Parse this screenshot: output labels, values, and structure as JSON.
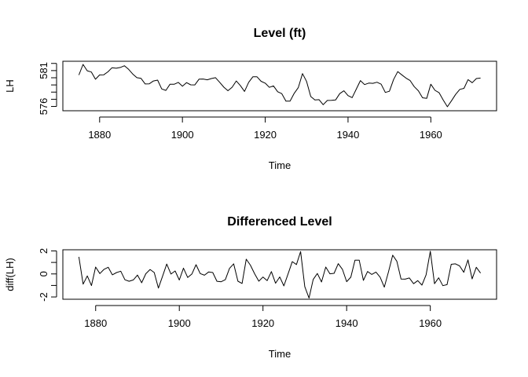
{
  "chart_data": [
    {
      "type": "line",
      "title": "Level (ft)",
      "xlabel": "Time",
      "ylabel": "LH",
      "xlim": [
        1875,
        1972
      ],
      "ylim": [
        575.4,
        582.3
      ],
      "x_ticks": [
        1880,
        1900,
        1920,
        1940,
        1960
      ],
      "x_tick_labels": [
        "1880",
        "1900",
        "1920",
        "1940",
        "1960"
      ],
      "y_ticks": [
        576,
        577,
        578,
        579,
        580,
        581,
        582
      ],
      "y_tick_labels": [
        "576",
        "",
        "",
        "",
        "",
        "581",
        ""
      ],
      "grid": false,
      "series": [
        {
          "x": [
            1875,
            1876,
            1877,
            1878,
            1879,
            1880,
            1881,
            1882,
            1883,
            1884,
            1885,
            1886,
            1887,
            1888,
            1889,
            1890,
            1891,
            1892,
            1893,
            1894,
            1895,
            1896,
            1897,
            1898,
            1899,
            1900,
            1901,
            1902,
            1903,
            1904,
            1905,
            1906,
            1907,
            1908,
            1909,
            1910,
            1911,
            1912,
            1913,
            1914,
            1915,
            1916,
            1917,
            1918,
            1919,
            1920,
            1921,
            1922,
            1923,
            1924,
            1925,
            1926,
            1927,
            1928,
            1929,
            1930,
            1931,
            1932,
            1933,
            1934,
            1935,
            1936,
            1937,
            1938,
            1939,
            1940,
            1941,
            1942,
            1943,
            1944,
            1945,
            1946,
            1947,
            1948,
            1949,
            1950,
            1951,
            1952,
            1953,
            1954,
            1955,
            1956,
            1957,
            1958,
            1959,
            1960,
            1961,
            1962,
            1963,
            1964,
            1965,
            1966,
            1967,
            1968,
            1969,
            1970,
            1971,
            1972
          ],
          "values": [
            580.38,
            581.86,
            580.97,
            580.8,
            579.79,
            580.39,
            580.42,
            580.82,
            581.4,
            581.32,
            581.44,
            581.68,
            581.17,
            580.53,
            580.01,
            579.91,
            579.14,
            579.16,
            579.55,
            579.67,
            578.44,
            578.24,
            579.1,
            579.09,
            579.35,
            578.82,
            579.32,
            579.01,
            579.0,
            579.8,
            579.83,
            579.72,
            579.89,
            580.01,
            579.37,
            578.69,
            578.19,
            578.67,
            579.55,
            578.92,
            578.09,
            579.37,
            580.13,
            580.14,
            579.51,
            579.24,
            578.66,
            578.86,
            578.05,
            577.79,
            576.75,
            576.75,
            577.82,
            578.64,
            580.58,
            579.48,
            577.38,
            576.9,
            576.94,
            576.24,
            576.84,
            576.85,
            576.9,
            577.79,
            578.18,
            577.51,
            577.23,
            578.42,
            579.61,
            579.05,
            579.26,
            579.22,
            579.38,
            579.1,
            577.95,
            578.12,
            579.75,
            580.85,
            580.41,
            579.96,
            579.61,
            578.76,
            578.18,
            577.21,
            577.13,
            579.1,
            578.25,
            577.91,
            576.89,
            575.96,
            576.8,
            577.68,
            578.38,
            578.52,
            579.74,
            579.31,
            579.89,
            579.96
          ]
        }
      ]
    },
    {
      "type": "line",
      "title": "Differenced Level",
      "xlabel": "Time",
      "ylabel": "diff(LH)",
      "xlim": [
        1876,
        1972
      ],
      "ylim": [
        -2.2,
        2.1
      ],
      "x_ticks": [
        1880,
        1900,
        1920,
        1940,
        1960
      ],
      "x_tick_labels": [
        "1880",
        "1900",
        "1920",
        "1940",
        "1960"
      ],
      "y_ticks": [
        -2,
        -1,
        0,
        1,
        2
      ],
      "y_tick_labels": [
        "-2",
        "",
        "0",
        "",
        "2"
      ],
      "grid": false,
      "series": [
        {
          "x": [
            1876,
            1877,
            1878,
            1879,
            1880,
            1881,
            1882,
            1883,
            1884,
            1885,
            1886,
            1887,
            1888,
            1889,
            1890,
            1891,
            1892,
            1893,
            1894,
            1895,
            1896,
            1897,
            1898,
            1899,
            1900,
            1901,
            1902,
            1903,
            1904,
            1905,
            1906,
            1907,
            1908,
            1909,
            1910,
            1911,
            1912,
            1913,
            1914,
            1915,
            1916,
            1917,
            1918,
            1919,
            1920,
            1921,
            1922,
            1923,
            1924,
            1925,
            1926,
            1927,
            1928,
            1929,
            1930,
            1931,
            1932,
            1933,
            1934,
            1935,
            1936,
            1937,
            1938,
            1939,
            1940,
            1941,
            1942,
            1943,
            1944,
            1945,
            1946,
            1947,
            1948,
            1949,
            1950,
            1951,
            1952,
            1953,
            1954,
            1955,
            1956,
            1957,
            1958,
            1959,
            1960,
            1961,
            1962,
            1963,
            1964,
            1965,
            1966,
            1967,
            1968,
            1969,
            1970,
            1971,
            1972
          ],
          "values": [
            1.48,
            -0.89,
            -0.17,
            -1.01,
            0.6,
            0.03,
            0.4,
            0.58,
            -0.08,
            0.12,
            0.24,
            -0.51,
            -0.64,
            -0.52,
            -0.1,
            -0.77,
            0.02,
            0.39,
            0.12,
            -1.23,
            -0.2,
            0.86,
            -0.01,
            0.26,
            -0.53,
            0.5,
            -0.31,
            -0.01,
            0.8,
            0.03,
            -0.11,
            0.17,
            0.12,
            -0.64,
            -0.68,
            -0.5,
            0.48,
            0.88,
            -0.63,
            -0.83,
            1.28,
            0.76,
            0.01,
            -0.63,
            -0.27,
            -0.58,
            0.2,
            -0.81,
            -0.26,
            -1.04,
            0.0,
            1.07,
            0.82,
            1.94,
            -1.1,
            -2.1,
            -0.48,
            0.04,
            -0.7,
            0.6,
            0.01,
            0.05,
            0.89,
            0.39,
            -0.67,
            -0.28,
            1.19,
            1.19,
            -0.56,
            0.21,
            -0.04,
            0.16,
            -0.28,
            -1.15,
            0.17,
            1.63,
            1.1,
            -0.44,
            -0.45,
            -0.35,
            -0.85,
            -0.58,
            -0.97,
            -0.08,
            1.97,
            -0.85,
            -0.34,
            -1.02,
            -0.93,
            0.84,
            0.88,
            0.7,
            0.14,
            1.22,
            -0.43,
            0.58,
            0.07
          ]
        }
      ]
    }
  ]
}
